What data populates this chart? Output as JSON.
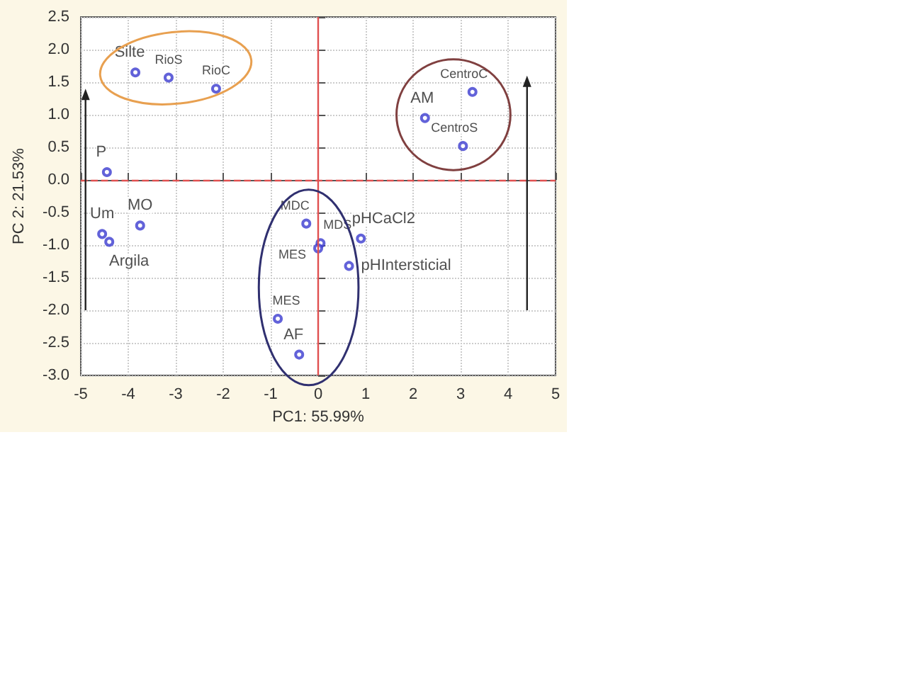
{
  "chart_data": {
    "type": "scatter",
    "xlabel": "PC1: 55.99%",
    "ylabel": "PC 2: 21.53%",
    "x": [
      -3.85,
      -3.15,
      -2.15,
      -4.45,
      -4.55,
      -4.4,
      -3.75,
      -0.25,
      0.05,
      0.0,
      0.9,
      0.65,
      -0.85,
      -0.4,
      2.25,
      3.25,
      3.05
    ],
    "series": [
      {
        "color": "#3b3bd0",
        "values": [
          1.65,
          1.57,
          1.4,
          0.12,
          -0.83,
          -0.95,
          -0.7,
          -0.67,
          -0.97,
          -1.05,
          -0.9,
          -1.32,
          -2.13,
          -2.68,
          0.95,
          1.35,
          0.52
        ]
      }
    ],
    "value_labels": [
      "Silte",
      "RioS",
      "RioC",
      "P",
      "Um",
      "Argila",
      "MO",
      "MDC",
      "MDS",
      "MES",
      "pHCaCl2",
      "pHIntersticial",
      "MES",
      "AF",
      "AM",
      "CentroC",
      "CentroS"
    ],
    "xlim": [
      -5,
      5
    ],
    "xticks": [
      -5,
      -4,
      -3,
      -2,
      -1,
      0,
      1,
      2,
      3,
      4,
      5
    ],
    "ylim": [
      -3,
      2.5
    ],
    "yticks": [
      {
        "value": -3,
        "label": "-3.0"
      },
      -2.5,
      {
        "value": -2,
        "label": "-2.0"
      },
      -1.5,
      {
        "value": -1,
        "label": "-1.0"
      },
      -0.5,
      {
        "value": 0,
        "label": "0.0"
      },
      0.5,
      {
        "value": 1,
        "label": "1.0"
      },
      1.5,
      {
        "value": 2,
        "label": "2.0"
      },
      2.5
    ],
    "ref_lines": [
      {
        "axis": "y",
        "value": 0,
        "color": "#e05050",
        "line_style": "dashed"
      },
      {
        "axis": "x",
        "value": 0,
        "color": "#e05050",
        "line_style": "solid"
      }
    ],
    "grid": true,
    "marker": "circle"
  }
}
